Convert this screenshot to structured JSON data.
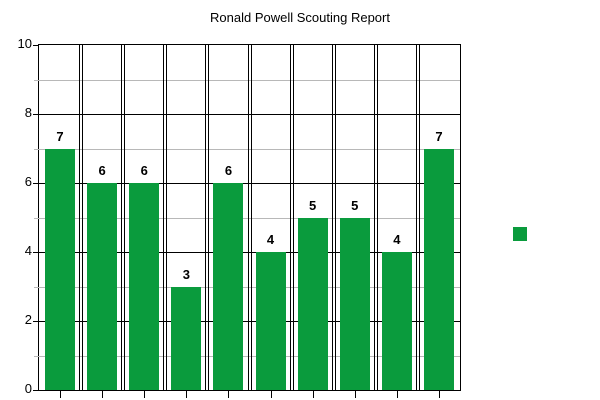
{
  "title": "Ronald Powell Scouting Report",
  "chart_data": {
    "type": "bar",
    "title": "Ronald Powell Scouting Report",
    "categories": [
      "",
      "",
      "",
      "",
      "",
      "",
      "",
      "",
      "",
      ""
    ],
    "values": [
      7,
      6,
      6,
      3,
      6,
      4,
      5,
      5,
      4,
      7
    ],
    "value_labels": [
      "7",
      "6",
      "6",
      "3",
      "6",
      "4",
      "5",
      "5",
      "4",
      "7"
    ],
    "xlabel": "",
    "ylabel": "",
    "ylim": [
      0,
      10
    ],
    "ytick_values": [
      0,
      2,
      4,
      6,
      8,
      10
    ],
    "ytick_labels": [
      "0",
      "2",
      "4",
      "6",
      "8",
      "10"
    ],
    "minor_ytick_values": [
      1,
      3,
      5,
      7,
      9
    ],
    "grid": "on",
    "show_value_labels": true,
    "legend": {
      "position": "right",
      "label": "",
      "marker": "square"
    }
  },
  "colors": {
    "bar": "#0a9b3d",
    "major_grid": "#000000",
    "minor_grid": "#b8b8b8",
    "background": "#ffffff",
    "text": "#000000"
  }
}
